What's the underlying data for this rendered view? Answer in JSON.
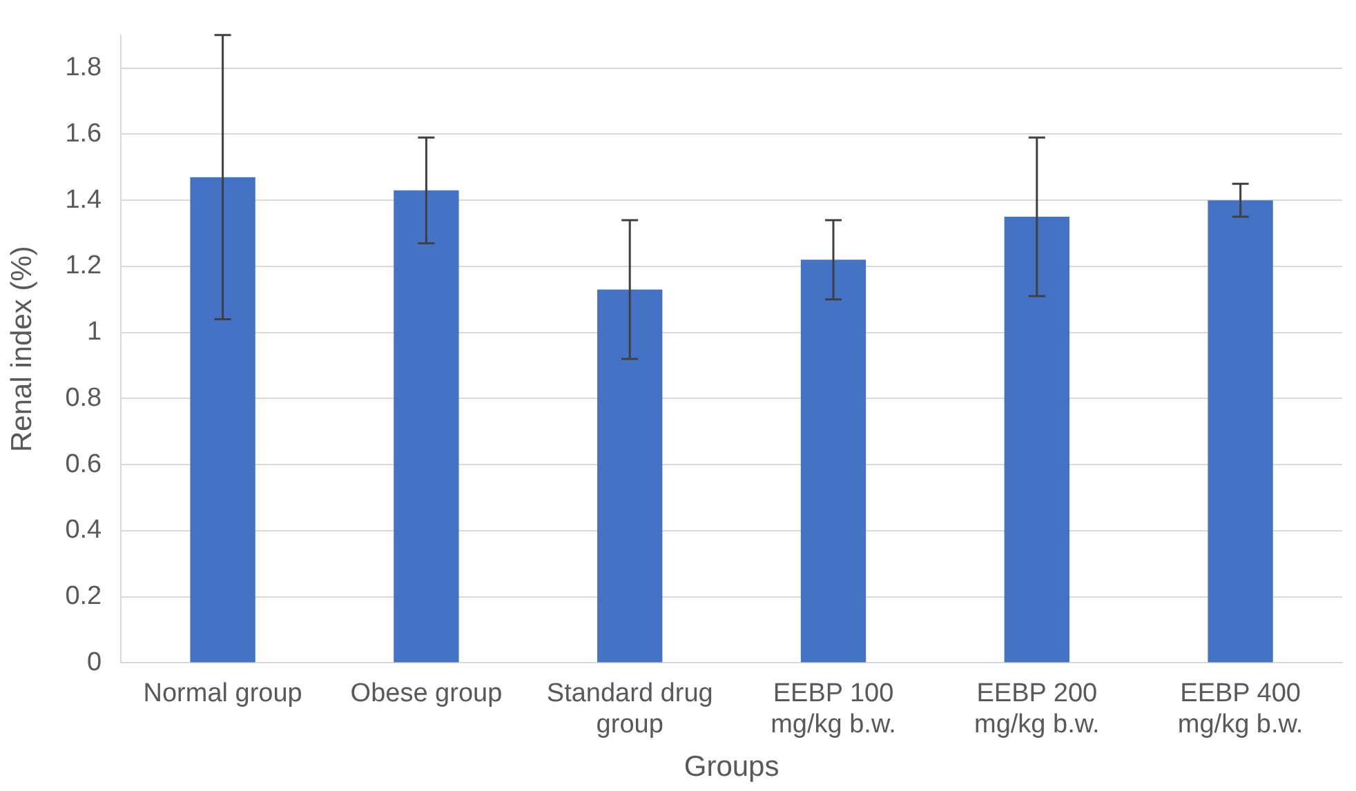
{
  "chart_data": {
    "type": "bar",
    "xlabel": "Groups",
    "ylabel": "Renal index (%)",
    "categories": [
      "Normal group",
      "Obese group",
      "Standard drug group",
      "EEBP 100 mg/kg b.w.",
      "EEBP 200 mg/kg b.w.",
      "EEBP 400 mg/kg b.w."
    ],
    "values": [
      1.47,
      1.43,
      1.13,
      1.22,
      1.35,
      1.4
    ],
    "errors": [
      0.43,
      0.16,
      0.21,
      0.12,
      0.24,
      0.05
    ],
    "color": "#4472c4",
    "ylim": [
      0,
      1.9
    ],
    "yticks": [
      0,
      0.2,
      0.4,
      0.6,
      0.8,
      1,
      1.2,
      1.4,
      1.6,
      1.8
    ],
    "grid": "y",
    "legend": false
  }
}
